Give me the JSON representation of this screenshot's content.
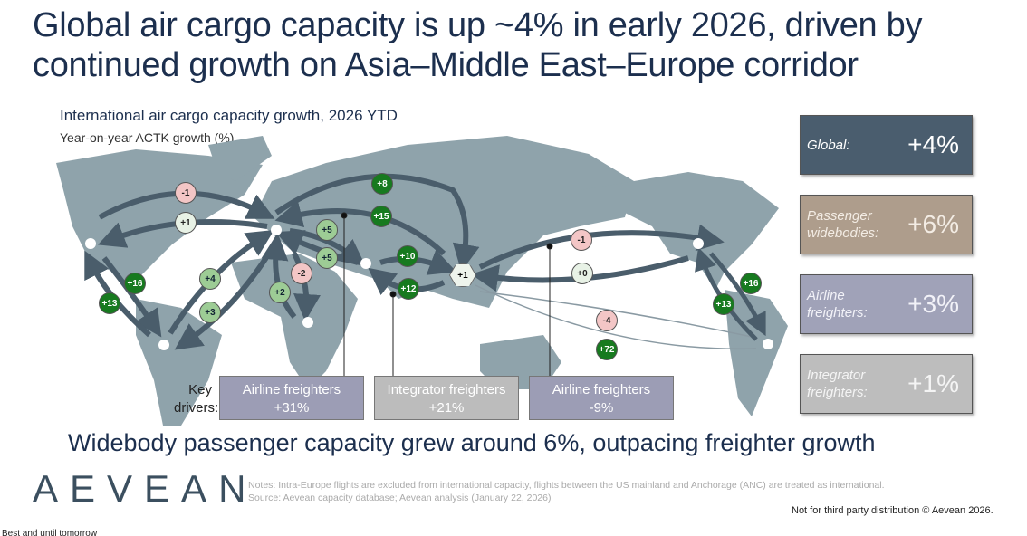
{
  "title": "Global air cargo capacity is up ~4% in early 2026, driven by continued growth on Asia–Middle East–Europe corridor",
  "chart_data": {
    "type": "flow-map",
    "title": "International air cargo capacity growth, 2026 YTD",
    "subtitle": "Year-on-year ACTK growth (%)",
    "flows": [
      {
        "route": "North America → Europe",
        "value": "-1",
        "color": "pink"
      },
      {
        "route": "Europe → North America",
        "value": "+1",
        "color": "pale"
      },
      {
        "route": "North America → South America",
        "value": "+16",
        "color": "dark"
      },
      {
        "route": "South America → North America",
        "value": "+13",
        "color": "dark"
      },
      {
        "route": "South America → Europe",
        "value": "+4",
        "color": "light"
      },
      {
        "route": "Europe → South America",
        "value": "+3",
        "color": "light"
      },
      {
        "route": "Europe → Middle East",
        "value": "+5",
        "color": "light"
      },
      {
        "route": "Middle East → Europe",
        "value": "+5",
        "color": "light"
      },
      {
        "route": "Europe → Africa",
        "value": "-2",
        "color": "pink"
      },
      {
        "route": "Africa → Europe",
        "value": "+2",
        "color": "light"
      },
      {
        "route": "Europe → Asia",
        "value": "+8",
        "color": "dark"
      },
      {
        "route": "Asia → Europe",
        "value": "+15",
        "color": "dark"
      },
      {
        "route": "Middle East → Asia",
        "value": "+10",
        "color": "dark"
      },
      {
        "route": "Asia → Middle East",
        "value": "+12",
        "color": "dark"
      },
      {
        "route": "Intra-Asia",
        "value": "+1",
        "color": "pale"
      },
      {
        "route": "Asia → North America",
        "value": "-1",
        "color": "pink"
      },
      {
        "route": "North America → Asia",
        "value": "+0",
        "color": "pale"
      },
      {
        "route": "Asia → South America",
        "value": "-4",
        "color": "pink"
      },
      {
        "route": "South America → Asia",
        "value": "+72",
        "color": "dark"
      },
      {
        "route": "North America → South America (right)",
        "value": "+16",
        "color": "dark"
      },
      {
        "route": "South America → North America (right)",
        "value": "+13",
        "color": "dark"
      }
    ],
    "key_drivers_label": "Key drivers:",
    "key_drivers": [
      {
        "name": "Airline freighters",
        "value": "+31%"
      },
      {
        "name": "Integrator freighters",
        "value": "+21%"
      },
      {
        "name": "Airline freighters",
        "value": "-9%"
      }
    ],
    "summary": [
      {
        "label": "Global:",
        "value": "+4%",
        "color": "#4a5d6e"
      },
      {
        "label": "Passenger widebodies:",
        "value": "+6%",
        "color": "#ae9d8c"
      },
      {
        "label": "Airline freighters:",
        "value": "+3%",
        "color": "#a0a2b8"
      },
      {
        "label": "Integrator freighters:",
        "value": "+1%",
        "color": "#bdbdbd"
      }
    ]
  },
  "takeaway": "Widebody passenger capacity grew around 6%, outpacing freighter growth",
  "logo": "AEVEAN",
  "notes": "Notes: Intra-Europe flights are excluded from international capacity, flights between the US mainland and Anchorage (ANC) are treated as international.",
  "source": "Source: Aevean capacity database; Aevean analysis (January 22, 2026)",
  "distribution": "Not for third party distribution © Aevean 2026.",
  "cutoff_text": "Best and until tomorrow"
}
